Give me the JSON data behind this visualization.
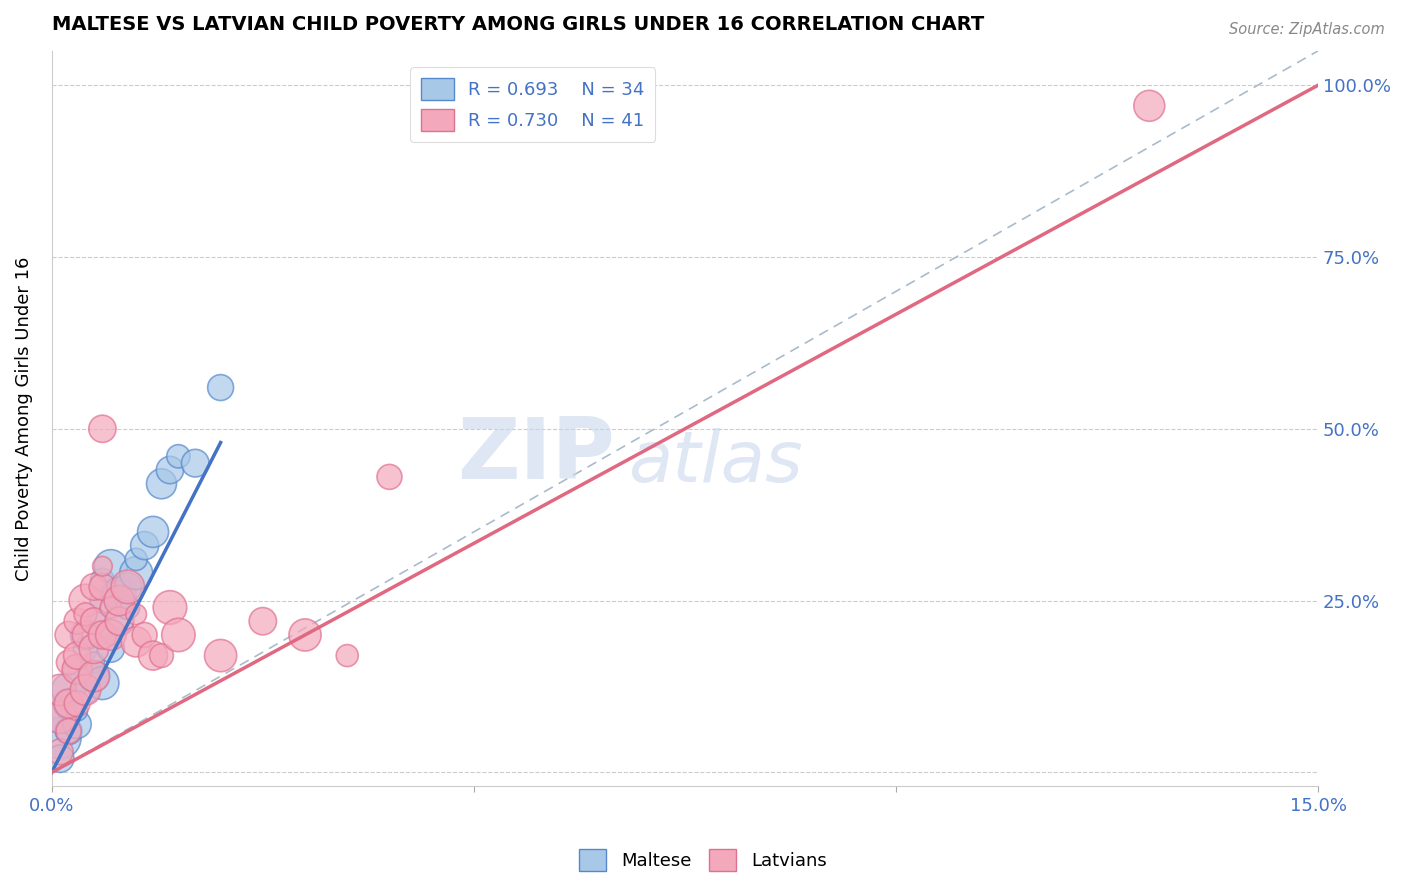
{
  "title": "MALTESE VS LATVIAN CHILD POVERTY AMONG GIRLS UNDER 16 CORRELATION CHART",
  "source": "Source: ZipAtlas.com",
  "ylabel": "Child Poverty Among Girls Under 16",
  "xlim": [
    0.0,
    0.15
  ],
  "ylim": [
    -0.02,
    1.05
  ],
  "xticks": [
    0.0,
    0.05,
    0.1,
    0.15
  ],
  "xtick_labels": [
    "0.0%",
    "",
    "",
    "15.0%"
  ],
  "yticks": [
    0.0,
    0.25,
    0.5,
    0.75,
    1.0
  ],
  "ytick_labels_right": [
    "",
    "25.0%",
    "50.0%",
    "75.0%",
    "100.0%"
  ],
  "maltese_color": "#A8C8E8",
  "latvian_color": "#F4A8BC",
  "maltese_edge_color": "#5588CC",
  "latvian_edge_color": "#E07090",
  "maltese_line_color": "#4472C4",
  "latvian_line_color": "#E06880",
  "ref_line_color": "#AABBCC",
  "legend_label_maltese": "R = 0.693    N = 34",
  "legend_label_latvian": "R = 0.730    N = 41",
  "watermark_zip": "ZIP",
  "watermark_atlas": "atlas",
  "background_color": "#FFFFFF",
  "grid_color": "#CCCCCC",
  "maltese_scatter": [
    [
      0.001,
      0.05
    ],
    [
      0.001,
      0.08
    ],
    [
      0.002,
      0.06
    ],
    [
      0.002,
      0.1
    ],
    [
      0.002,
      0.12
    ],
    [
      0.003,
      0.07
    ],
    [
      0.003,
      0.15
    ],
    [
      0.003,
      0.09
    ],
    [
      0.004,
      0.18
    ],
    [
      0.004,
      0.12
    ],
    [
      0.004,
      0.2
    ],
    [
      0.005,
      0.14
    ],
    [
      0.005,
      0.22
    ],
    [
      0.005,
      0.16
    ],
    [
      0.006,
      0.25
    ],
    [
      0.006,
      0.13
    ],
    [
      0.006,
      0.28
    ],
    [
      0.007,
      0.18
    ],
    [
      0.007,
      0.3
    ],
    [
      0.007,
      0.2
    ],
    [
      0.008,
      0.22
    ],
    [
      0.008,
      0.26
    ],
    [
      0.009,
      0.24
    ],
    [
      0.009,
      0.27
    ],
    [
      0.01,
      0.29
    ],
    [
      0.01,
      0.31
    ],
    [
      0.011,
      0.33
    ],
    [
      0.012,
      0.35
    ],
    [
      0.013,
      0.42
    ],
    [
      0.014,
      0.44
    ],
    [
      0.015,
      0.46
    ],
    [
      0.017,
      0.45
    ],
    [
      0.02,
      0.56
    ],
    [
      0.001,
      0.02
    ]
  ],
  "latvian_scatter": [
    [
      0.001,
      0.03
    ],
    [
      0.001,
      0.08
    ],
    [
      0.001,
      0.12
    ],
    [
      0.002,
      0.06
    ],
    [
      0.002,
      0.1
    ],
    [
      0.002,
      0.16
    ],
    [
      0.002,
      0.2
    ],
    [
      0.003,
      0.1
    ],
    [
      0.003,
      0.15
    ],
    [
      0.003,
      0.22
    ],
    [
      0.003,
      0.17
    ],
    [
      0.004,
      0.12
    ],
    [
      0.004,
      0.2
    ],
    [
      0.004,
      0.25
    ],
    [
      0.004,
      0.23
    ],
    [
      0.005,
      0.14
    ],
    [
      0.005,
      0.22
    ],
    [
      0.005,
      0.27
    ],
    [
      0.005,
      0.18
    ],
    [
      0.006,
      0.2
    ],
    [
      0.006,
      0.27
    ],
    [
      0.006,
      0.3
    ],
    [
      0.007,
      0.24
    ],
    [
      0.007,
      0.2
    ],
    [
      0.008,
      0.22
    ],
    [
      0.008,
      0.25
    ],
    [
      0.009,
      0.27
    ],
    [
      0.01,
      0.19
    ],
    [
      0.01,
      0.23
    ],
    [
      0.011,
      0.2
    ],
    [
      0.012,
      0.17
    ],
    [
      0.013,
      0.17
    ],
    [
      0.014,
      0.24
    ],
    [
      0.015,
      0.2
    ],
    [
      0.02,
      0.17
    ],
    [
      0.025,
      0.22
    ],
    [
      0.03,
      0.2
    ],
    [
      0.035,
      0.17
    ],
    [
      0.04,
      0.43
    ],
    [
      0.006,
      0.5
    ],
    [
      0.13,
      0.97
    ]
  ],
  "maltese_line": [
    [
      0.0,
      0.0
    ],
    [
      0.02,
      0.48
    ]
  ],
  "latvian_line": [
    [
      0.0,
      0.0
    ],
    [
      0.15,
      1.0
    ]
  ],
  "ref_line": [
    [
      0.0,
      0.0
    ],
    [
      0.15,
      1.05
    ]
  ]
}
